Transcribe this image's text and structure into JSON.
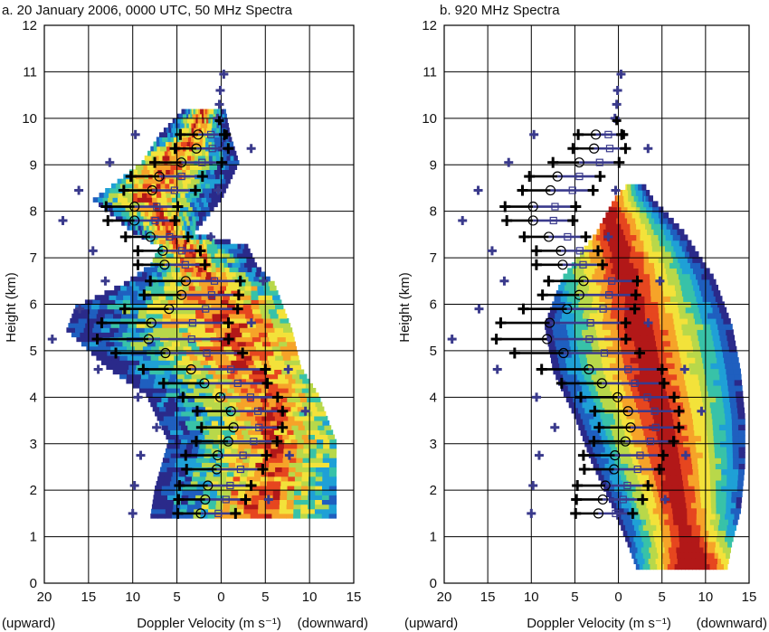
{
  "chart_data": [
    {
      "type": "heatmap",
      "title": "a. 20 January 2006, 0000 UTC, 50 MHz Spectra",
      "xlabel_left": "(upward)",
      "xlabel": "Doppler Velocity (m s⁻¹)",
      "xlabel_right": "(downward)",
      "ylabel": "Height (km)",
      "xlim": [
        20,
        -15
      ],
      "ylim": [
        0,
        12
      ],
      "x_ticks": [
        "20",
        "15",
        "10",
        "5",
        "0",
        "5",
        "10",
        "15"
      ],
      "y_ticks": [
        "0",
        "1",
        "2",
        "3",
        "4",
        "5",
        "6",
        "7",
        "8",
        "9",
        "10",
        "11",
        "12"
      ],
      "grid": true,
      "markers": "circles = mean velocity, squares = mode, plus = spectral edges, bars = spread"
    },
    {
      "type": "heatmap",
      "title": "b. 920 MHz Spectra",
      "xlabel_left": "(upward)",
      "xlabel": "Doppler Velocity (m s⁻¹)",
      "xlabel_right": "(downward)",
      "ylabel": "Height (km)",
      "xlim": [
        20,
        -15
      ],
      "ylim": [
        0,
        12
      ],
      "x_ticks": [
        "20",
        "15",
        "10",
        "5",
        "0",
        "5",
        "10",
        "15"
      ],
      "y_ticks": [
        "0",
        "1",
        "2",
        "3",
        "4",
        "5",
        "6",
        "7",
        "8",
        "9",
        "10",
        "11",
        "12"
      ],
      "grid": true
    }
  ],
  "profile": [
    {
      "h": 9.65,
      "m": 2.6,
      "w": 1.6
    },
    {
      "h": 9.35,
      "m": 2.8,
      "w": 2.0
    },
    {
      "h": 9.05,
      "m": 4.5,
      "w": 2.6
    },
    {
      "h": 8.75,
      "m": 7.0,
      "w": 2.8
    },
    {
      "h": 8.45,
      "m": 7.8,
      "w": 2.8
    },
    {
      "h": 8.1,
      "m": 9.8,
      "w": 2.8
    },
    {
      "h": 7.8,
      "m": 9.8,
      "w": 2.6
    },
    {
      "h": 7.45,
      "m": 8.0,
      "w": 2.4
    },
    {
      "h": 7.15,
      "m": 6.6,
      "w": 2.4
    },
    {
      "h": 6.85,
      "m": 6.4,
      "w": 2.6
    },
    {
      "h": 6.5,
      "m": 4.0,
      "w": 3.6
    },
    {
      "h": 6.2,
      "m": 4.5,
      "w": 3.8
    },
    {
      "h": 5.9,
      "m": 5.9,
      "w": 4.6
    },
    {
      "h": 5.6,
      "m": 7.9,
      "w": 5.2
    },
    {
      "h": 5.25,
      "m": 8.2,
      "w": 5.4
    },
    {
      "h": 4.95,
      "m": 6.3,
      "w": 5.2
    },
    {
      "h": 4.6,
      "m": 3.4,
      "w": 5.0
    },
    {
      "h": 4.3,
      "m": 1.9,
      "w": 4.2
    },
    {
      "h": 4.0,
      "m": 0.1,
      "w": 3.8
    },
    {
      "h": 3.7,
      "m": -1.1,
      "w": 3.4
    },
    {
      "h": 3.35,
      "m": -1.4,
      "w": 3.2
    },
    {
      "h": 3.05,
      "m": -0.8,
      "w": 3.2
    },
    {
      "h": 2.75,
      "m": 0.4,
      "w": 3.2
    },
    {
      "h": 2.45,
      "m": 0.5,
      "w": 3.0
    },
    {
      "h": 2.1,
      "m": 1.5,
      "w": 2.8
    },
    {
      "h": 1.8,
      "m": 1.8,
      "w": 2.6
    },
    {
      "h": 1.5,
      "m": 2.3,
      "w": 2.2
    }
  ],
  "colors": {
    "frame": "#000000",
    "grid": "#000000",
    "marker": "#000000",
    "edge_blue": "#3a3a8c",
    "heat_scale": [
      "#2a2a8a",
      "#1f5fbf",
      "#1fa0d6",
      "#38c2a8",
      "#b8d84a",
      "#f3e23a",
      "#f6a329",
      "#e6461f",
      "#b21818",
      "#6a0a0a"
    ]
  }
}
